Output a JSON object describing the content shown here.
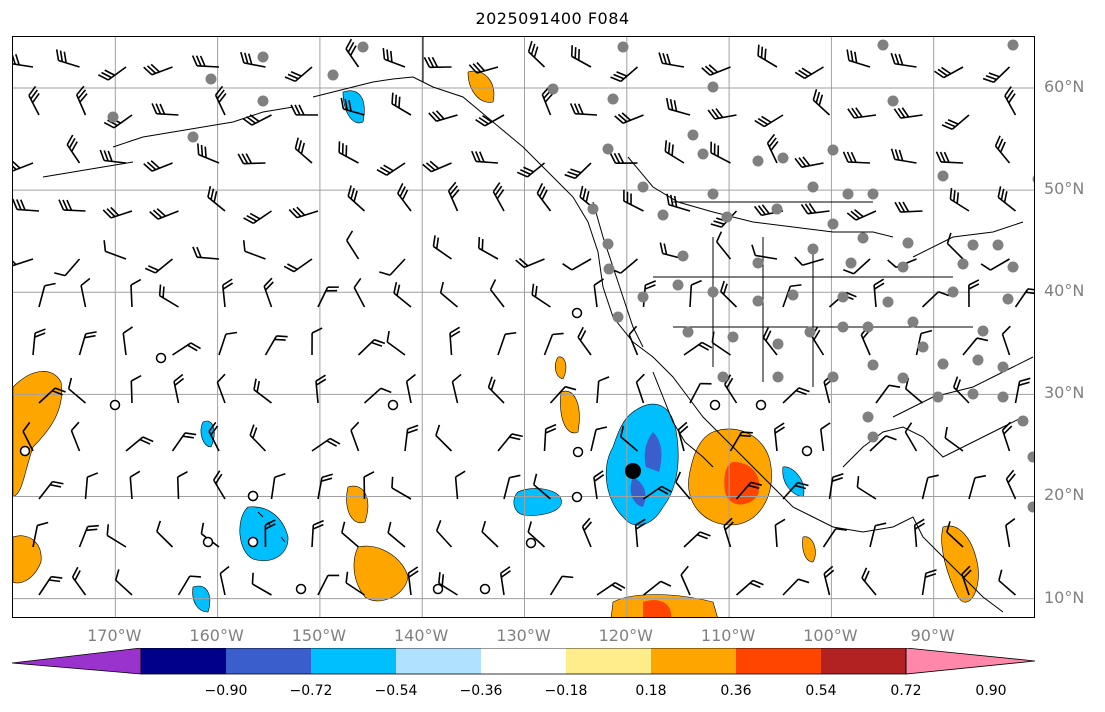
{
  "title": "2025091400 F084",
  "map": {
    "lon_min": -180,
    "lon_max": -80,
    "lat_min": 8,
    "lat_max": 65,
    "projection": "plate-carree",
    "grid_lon": [
      -170,
      -160,
      -150,
      -140,
      -130,
      -120,
      -110,
      -100,
      -90
    ],
    "grid_lat": [
      10,
      20,
      30,
      40,
      50,
      60
    ],
    "grid_color": "#a0a0a0",
    "coast_color": "#000000",
    "marker": {
      "lon": -119.4,
      "lat": 22.5,
      "label": "center-marker"
    }
  },
  "lon_labels": [
    "170°W",
    "160°W",
    "150°W",
    "140°W",
    "130°W",
    "120°W",
    "110°W",
    "100°W",
    "90°W"
  ],
  "lat_labels": [
    "60°N",
    "50°N",
    "40°N",
    "30°N",
    "20°N",
    "10°N"
  ],
  "colorbar": {
    "ticks": [
      "−0.90",
      "−0.72",
      "−0.54",
      "−0.36",
      "−0.18",
      "0.18",
      "0.36",
      "0.54",
      "0.72",
      "0.90"
    ],
    "colors": [
      "#9a32cd",
      "#00008b",
      "#3a5fcd",
      "#00bfff",
      "#b0e2ff",
      "#ffffff",
      "#ffec8b",
      "#ffa500",
      "#ff4500",
      "#b22222",
      "#ff88aa"
    ]
  },
  "obs_colors": {
    "filled": "#808080",
    "open": "#000000"
  }
}
